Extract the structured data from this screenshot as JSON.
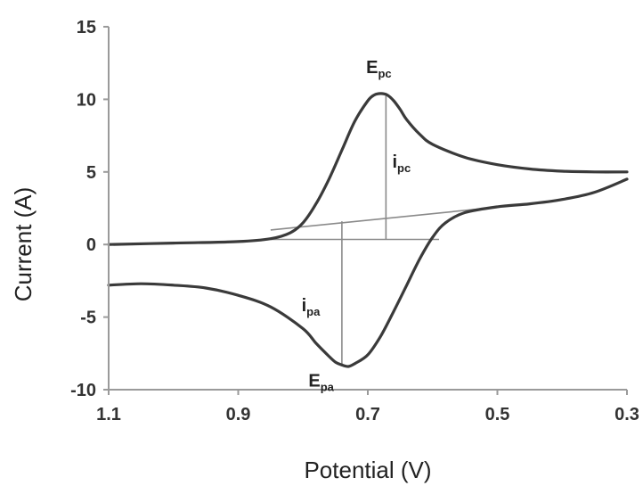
{
  "chart_data": {
    "type": "line",
    "title": "",
    "xlabel": "Potential (V)",
    "ylabel": "Current (A)",
    "x_reversed": true,
    "xlim": [
      0.3,
      1.1
    ],
    "ylim": [
      -10,
      15
    ],
    "x_ticks": [
      "1.1",
      "0.9",
      "0.7",
      "0.5",
      "0.3"
    ],
    "y_ticks": [
      "15",
      "10",
      "5",
      "0",
      "-5",
      "-10"
    ],
    "grid": false,
    "legend": "none",
    "colors": {
      "curve": "#3a3a3a",
      "guides": "#8a8a8a",
      "axes": "#9a9a9a"
    },
    "series": [
      {
        "name": "",
        "x": [
          1.1,
          1.0,
          0.9,
          0.85,
          0.82,
          0.8,
          0.78,
          0.76,
          0.74,
          0.72,
          0.7,
          0.69,
          0.68,
          0.67,
          0.66,
          0.65,
          0.64,
          0.62,
          0.6,
          0.55,
          0.5,
          0.45,
          0.4,
          0.35,
          0.3
        ],
        "y": [
          0.0,
          0.1,
          0.2,
          0.4,
          0.8,
          1.5,
          2.8,
          4.5,
          6.5,
          8.5,
          9.9,
          10.3,
          10.4,
          10.3,
          9.9,
          9.3,
          8.6,
          7.6,
          6.9,
          6.0,
          5.5,
          5.2,
          5.05,
          5.0,
          5.0
        ]
      },
      {
        "name": "",
        "x": [
          0.3,
          0.35,
          0.4,
          0.45,
          0.5,
          0.55,
          0.58,
          0.6,
          0.62,
          0.64,
          0.66,
          0.68,
          0.7,
          0.72,
          0.73,
          0.74,
          0.75,
          0.76,
          0.78,
          0.8,
          0.85,
          0.9,
          0.95,
          1.0,
          1.05,
          1.1
        ],
        "y": [
          4.5,
          3.6,
          3.1,
          2.8,
          2.6,
          2.2,
          1.5,
          0.5,
          -1.0,
          -2.8,
          -4.6,
          -6.3,
          -7.6,
          -8.2,
          -8.4,
          -8.3,
          -8.1,
          -7.7,
          -6.8,
          -5.8,
          -4.3,
          -3.5,
          -3.0,
          -2.8,
          -2.7,
          -2.8
        ]
      }
    ],
    "annotations": [
      {
        "label": "E",
        "sub": "pc",
        "x": 0.683,
        "y": 11.8
      },
      {
        "label": "i",
        "sub": "pc",
        "x": 0.648,
        "y": 5.3
      },
      {
        "label": "i",
        "sub": "pa",
        "x": 0.788,
        "y": -4.6
      },
      {
        "label": "E",
        "sub": "pa",
        "x": 0.772,
        "y": -9.8
      }
    ],
    "guide_lines": [
      {
        "x1": 0.85,
        "y1": 1.0,
        "x2": 0.45,
        "y2": 2.8
      },
      {
        "x1": 0.85,
        "y1": 0.35,
        "x2": 0.59,
        "y2": 0.35
      },
      {
        "x1": 0.672,
        "y1": 0.35,
        "x2": 0.672,
        "y2": 10.4
      },
      {
        "x1": 0.74,
        "y1": 1.6,
        "x2": 0.74,
        "y2": -8.3
      }
    ]
  }
}
